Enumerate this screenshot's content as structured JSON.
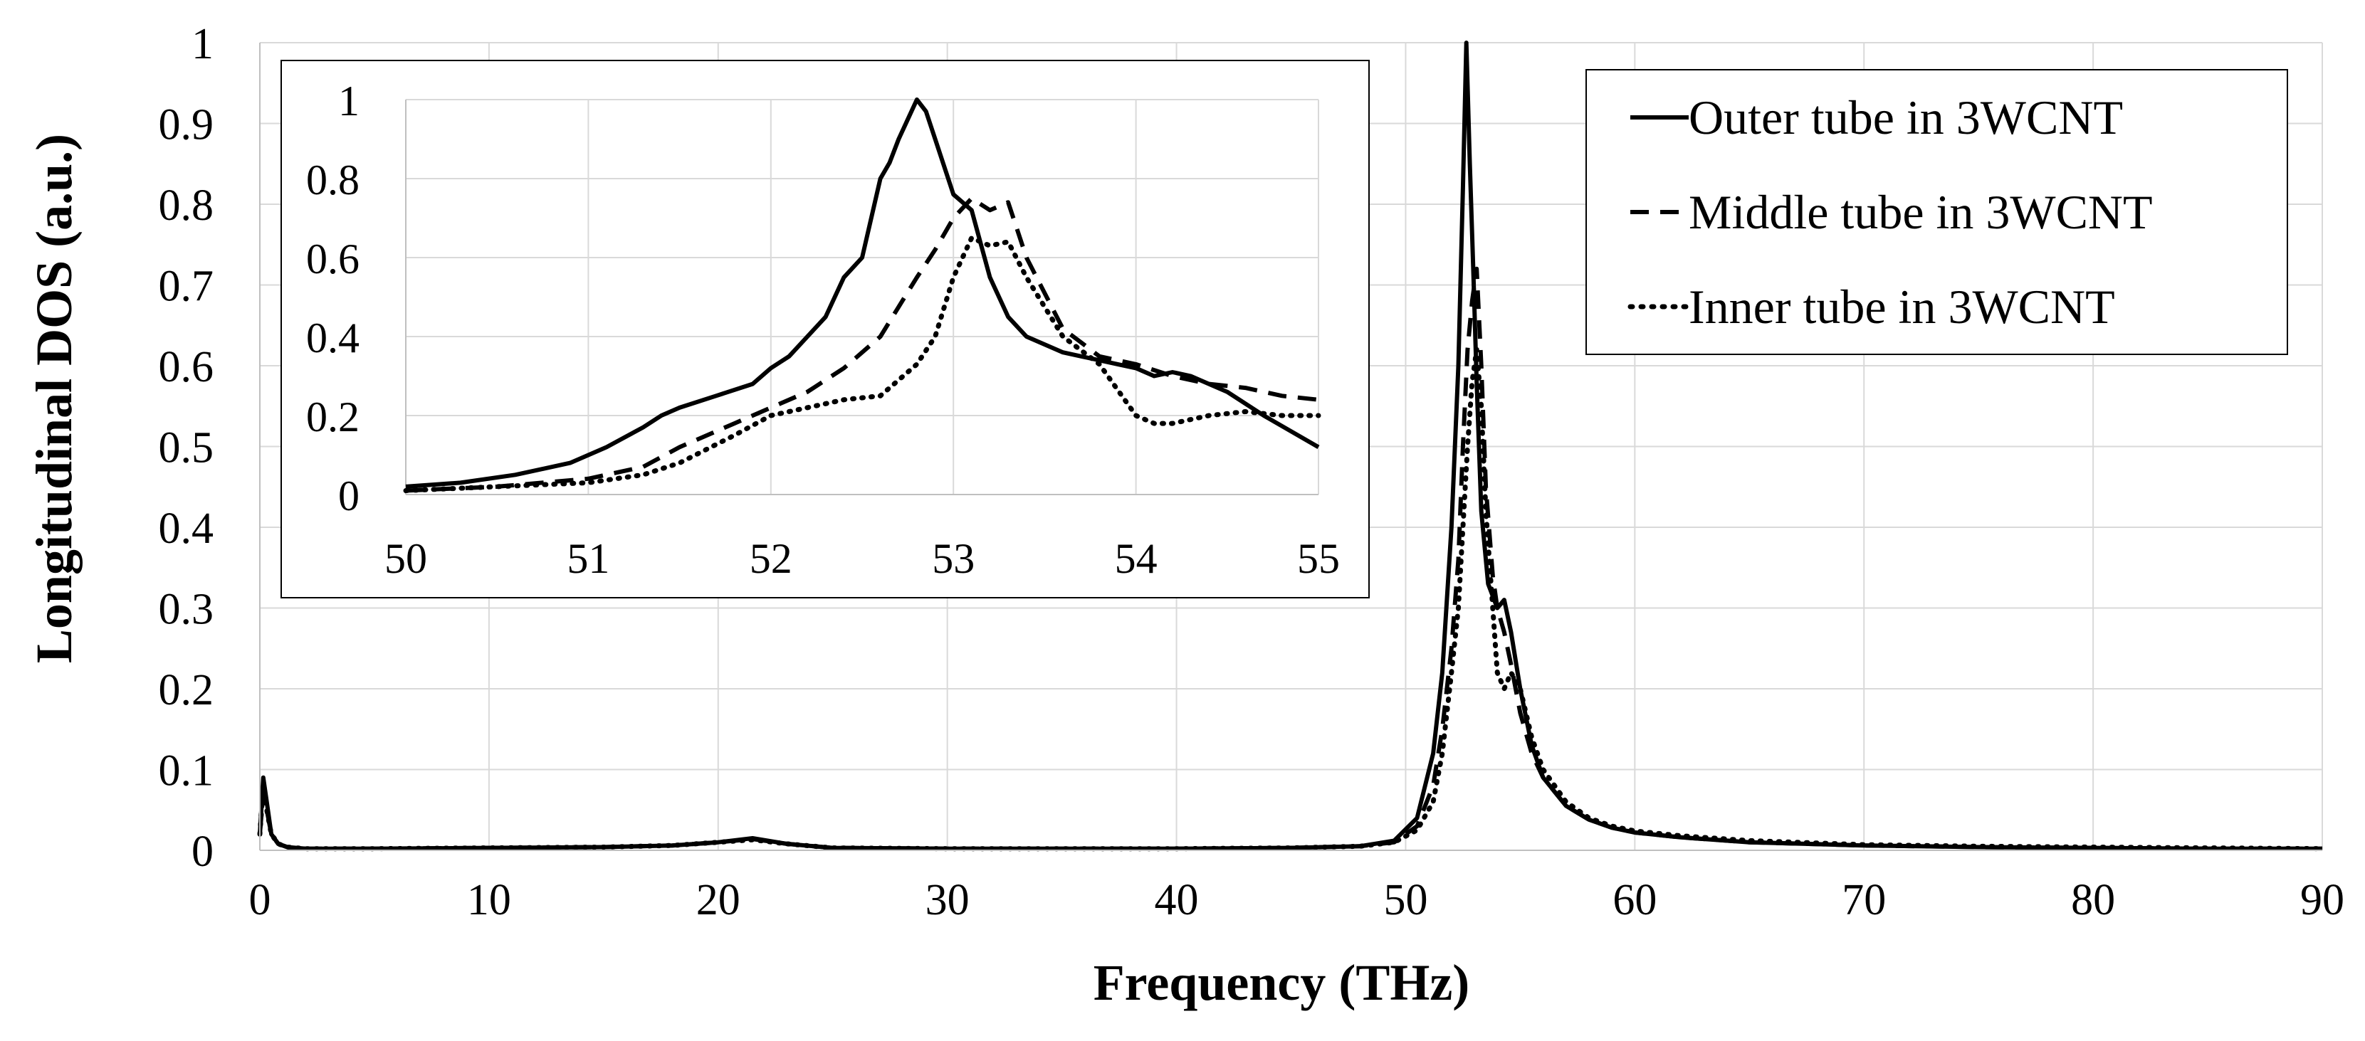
{
  "chart_data": [
    {
      "type": "line",
      "role": "main",
      "title": "",
      "xlabel": "Frequency (THz)",
      "ylabel": "Longitudinal DOS (a.u.)",
      "xlim": [
        0,
        90
      ],
      "ylim": [
        0,
        1
      ],
      "xticks": [
        0,
        10,
        20,
        30,
        40,
        50,
        60,
        70,
        80,
        90
      ],
      "yticks": [
        0,
        0.1,
        0.2,
        0.3,
        0.4,
        0.5,
        0.6,
        0.7,
        0.8,
        0.9,
        1
      ],
      "grid": true,
      "legend_position": "top-right",
      "series": [
        {
          "name": "Outer tube in 3WCNT",
          "style": "solid",
          "x": [
            0,
            0.15,
            0.3,
            0.5,
            0.8,
            1.2,
            2,
            5,
            10,
            15,
            18,
            20,
            21.5,
            23,
            25,
            30,
            35,
            40,
            45,
            48,
            49.5,
            50.5,
            51.2,
            51.6,
            52,
            52.3,
            52.5,
            52.65,
            52.8,
            52.95,
            53.1,
            53.3,
            53.6,
            54,
            54.3,
            54.6,
            55,
            55.5,
            56,
            57,
            58,
            59,
            60,
            62,
            65,
            70,
            75,
            80,
            85,
            90
          ],
          "values": [
            0.02,
            0.09,
            0.06,
            0.02,
            0.008,
            0.004,
            0.002,
            0.002,
            0.003,
            0.004,
            0.006,
            0.01,
            0.015,
            0.008,
            0.003,
            0.002,
            0.002,
            0.002,
            0.003,
            0.005,
            0.012,
            0.04,
            0.12,
            0.22,
            0.4,
            0.6,
            0.82,
            1.0,
            0.85,
            0.72,
            0.58,
            0.42,
            0.33,
            0.3,
            0.31,
            0.27,
            0.2,
            0.13,
            0.09,
            0.055,
            0.038,
            0.028,
            0.022,
            0.016,
            0.01,
            0.006,
            0.004,
            0.003,
            0.002,
            0.002
          ]
        },
        {
          "name": "Middle tube in 3WCNT",
          "style": "dashed",
          "x": [
            0,
            0.15,
            0.3,
            0.5,
            0.8,
            1.2,
            2,
            5,
            10,
            15,
            18,
            20,
            21.5,
            23,
            25,
            30,
            35,
            40,
            45,
            48,
            49.5,
            50.5,
            51.2,
            51.6,
            52,
            52.3,
            52.5,
            52.7,
            52.9,
            53.1,
            53.3,
            53.5,
            53.8,
            54,
            54.3,
            54.6,
            55,
            55.5,
            56,
            57,
            58,
            59,
            60,
            62,
            65,
            70,
            75,
            80,
            85,
            90
          ],
          "values": [
            0.02,
            0.07,
            0.05,
            0.02,
            0.008,
            0.004,
            0.002,
            0.002,
            0.003,
            0.004,
            0.006,
            0.01,
            0.014,
            0.008,
            0.003,
            0.002,
            0.002,
            0.002,
            0.003,
            0.005,
            0.01,
            0.03,
            0.08,
            0.15,
            0.25,
            0.36,
            0.5,
            0.62,
            0.68,
            0.72,
            0.6,
            0.45,
            0.34,
            0.3,
            0.27,
            0.23,
            0.17,
            0.12,
            0.09,
            0.055,
            0.038,
            0.028,
            0.022,
            0.016,
            0.01,
            0.006,
            0.004,
            0.003,
            0.002,
            0.002
          ]
        },
        {
          "name": "Inner tube in 3WCNT",
          "style": "dotted",
          "x": [
            0,
            0.15,
            0.3,
            0.5,
            0.8,
            1.2,
            2,
            5,
            10,
            15,
            18,
            20,
            21.5,
            23,
            25,
            30,
            35,
            40,
            45,
            48,
            49.5,
            50.5,
            51.2,
            51.6,
            52,
            52.3,
            52.5,
            52.7,
            52.9,
            53.1,
            53.3,
            53.5,
            53.8,
            54,
            54.3,
            54.6,
            55,
            55.5,
            56,
            57,
            58,
            59,
            60,
            62,
            65,
            70,
            75,
            80,
            85,
            90
          ],
          "values": [
            0.02,
            0.08,
            0.05,
            0.02,
            0.008,
            0.004,
            0.002,
            0.002,
            0.003,
            0.004,
            0.006,
            0.01,
            0.013,
            0.008,
            0.003,
            0.002,
            0.002,
            0.002,
            0.003,
            0.005,
            0.01,
            0.025,
            0.06,
            0.12,
            0.22,
            0.3,
            0.4,
            0.5,
            0.58,
            0.62,
            0.55,
            0.42,
            0.3,
            0.22,
            0.2,
            0.22,
            0.2,
            0.14,
            0.1,
            0.06,
            0.04,
            0.03,
            0.024,
            0.018,
            0.012,
            0.007,
            0.005,
            0.004,
            0.003,
            0.002
          ]
        }
      ]
    },
    {
      "type": "line",
      "role": "inset",
      "title": "",
      "xlim": [
        50,
        55
      ],
      "ylim": [
        0,
        1
      ],
      "xticks": [
        50,
        51,
        52,
        53,
        54,
        55
      ],
      "yticks": [
        0,
        0.2,
        0.4,
        0.6,
        0.8,
        1
      ],
      "ytick_labels": [
        "0",
        "0.2",
        "0.4",
        "0.6",
        "0.8",
        "1"
      ],
      "grid": true,
      "series": [
        {
          "name": "Outer tube in 3WCNT",
          "style": "solid",
          "x": [
            50,
            50.3,
            50.6,
            50.9,
            51.1,
            51.3,
            51.4,
            51.5,
            51.7,
            51.9,
            52.0,
            52.1,
            52.2,
            52.3,
            52.4,
            52.5,
            52.6,
            52.65,
            52.7,
            52.8,
            52.85,
            52.9,
            53.0,
            53.1,
            53.2,
            53.3,
            53.4,
            53.5,
            53.6,
            53.7,
            53.8,
            53.9,
            54.0,
            54.1,
            54.2,
            54.3,
            54.5,
            54.7,
            55.0
          ],
          "values": [
            0.02,
            0.03,
            0.05,
            0.08,
            0.12,
            0.17,
            0.2,
            0.22,
            0.25,
            0.28,
            0.32,
            0.35,
            0.4,
            0.45,
            0.55,
            0.6,
            0.8,
            0.84,
            0.9,
            1.0,
            0.97,
            0.9,
            0.76,
            0.72,
            0.55,
            0.45,
            0.4,
            0.38,
            0.36,
            0.35,
            0.34,
            0.33,
            0.32,
            0.3,
            0.31,
            0.3,
            0.26,
            0.2,
            0.12
          ]
        },
        {
          "name": "Middle tube in 3WCNT",
          "style": "dashed",
          "x": [
            50,
            50.5,
            51.0,
            51.3,
            51.5,
            51.8,
            52.0,
            52.2,
            52.4,
            52.6,
            52.8,
            52.9,
            53.0,
            53.1,
            53.2,
            53.3,
            53.4,
            53.6,
            53.8,
            54.0,
            54.2,
            54.4,
            54.6,
            54.8,
            55.0
          ],
          "values": [
            0.01,
            0.02,
            0.04,
            0.07,
            0.12,
            0.18,
            0.22,
            0.26,
            0.32,
            0.4,
            0.55,
            0.62,
            0.7,
            0.75,
            0.72,
            0.74,
            0.6,
            0.42,
            0.35,
            0.33,
            0.3,
            0.28,
            0.27,
            0.25,
            0.24
          ]
        },
        {
          "name": "Inner tube in 3WCNT",
          "style": "dotted",
          "x": [
            50,
            50.5,
            51.0,
            51.3,
            51.5,
            51.8,
            52.0,
            52.2,
            52.4,
            52.6,
            52.8,
            52.9,
            53.0,
            53.1,
            53.2,
            53.3,
            53.4,
            53.6,
            53.8,
            54.0,
            54.1,
            54.2,
            54.4,
            54.6,
            54.8,
            55.0
          ],
          "values": [
            0.01,
            0.02,
            0.03,
            0.05,
            0.08,
            0.15,
            0.2,
            0.22,
            0.24,
            0.25,
            0.33,
            0.4,
            0.55,
            0.65,
            0.63,
            0.64,
            0.55,
            0.4,
            0.33,
            0.2,
            0.18,
            0.18,
            0.2,
            0.21,
            0.2,
            0.2
          ]
        }
      ]
    }
  ]
}
